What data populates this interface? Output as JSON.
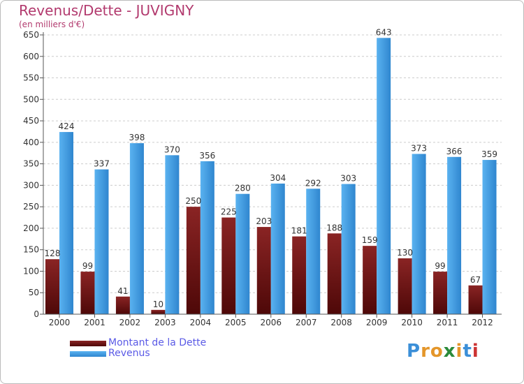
{
  "chart_data": {
    "type": "bar",
    "title": "Revenus/Dette - JUVIGNY",
    "subtitle": "(en milliers d'€)",
    "categories": [
      "2000",
      "2001",
      "2002",
      "2003",
      "2004",
      "2005",
      "2006",
      "2007",
      "2008",
      "2009",
      "2010",
      "2011",
      "2012"
    ],
    "series": [
      {
        "name": "Montant de la Dette",
        "color": "#7a1414",
        "values": [
          128,
          99,
          41,
          10,
          250,
          225,
          203,
          181,
          188,
          159,
          130,
          99,
          67
        ]
      },
      {
        "name": "Revenus",
        "color": "#3f9fe8",
        "values": [
          424,
          337,
          398,
          370,
          356,
          280,
          304,
          292,
          303,
          643,
          373,
          366,
          359
        ]
      }
    ],
    "ylim": [
      0,
      650
    ],
    "yticks": [
      0,
      50,
      100,
      150,
      200,
      250,
      300,
      350,
      400,
      450,
      500,
      550,
      600,
      650
    ],
    "grid": true,
    "legend_position": "bottom-left"
  },
  "legend": {
    "items": [
      {
        "label": "Montant de la Dette",
        "color": "#7a1414"
      },
      {
        "label": "Revenus",
        "color": "#3f9fe8"
      }
    ]
  },
  "logo": {
    "letters": [
      "P",
      "r",
      "o",
      "x",
      "i",
      "t",
      "i"
    ],
    "colors": [
      "#3b8fd8",
      "#e4962a",
      "#e4962a",
      "#2a8a3a",
      "#e4962a",
      "#3b8fd8",
      "#cc3333"
    ]
  }
}
